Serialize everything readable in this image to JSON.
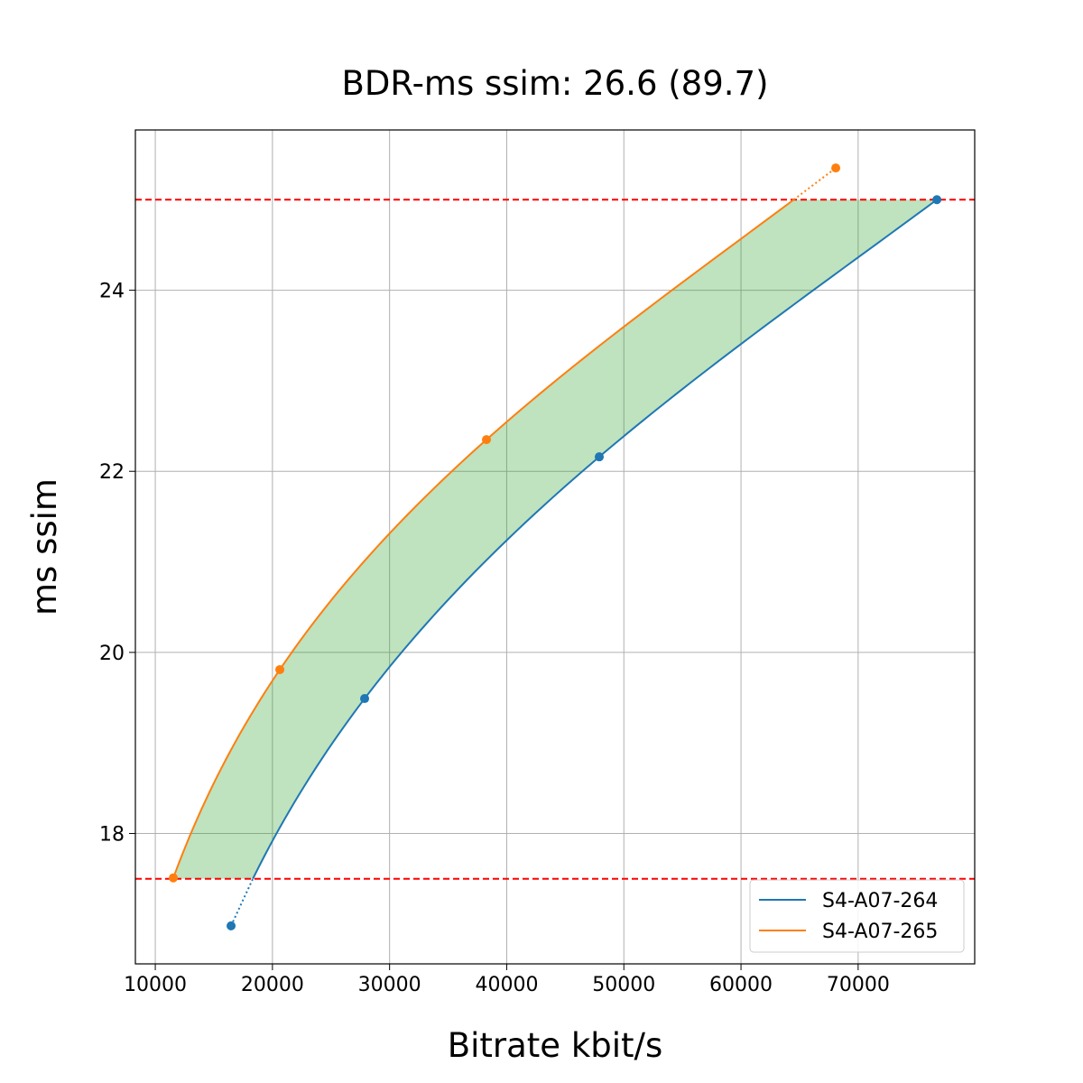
{
  "chart_data": {
    "type": "line",
    "title": "BDR-ms ssim: 26.6 (89.7)",
    "xlabel": "Bitrate kbit/s",
    "ylabel": "ms ssim",
    "xlim": [
      8300,
      79950
    ],
    "ylim": [
      16.56,
      25.77
    ],
    "xticks": [
      10000,
      20000,
      30000,
      40000,
      50000,
      60000,
      70000
    ],
    "yticks": [
      18,
      20,
      22,
      24
    ],
    "grid": true,
    "legend_position": "lower right",
    "reference_lines": [
      17.5,
      25.0
    ],
    "reference_line_color": "#ff0000",
    "fill_color": "#2ca02c",
    "series": [
      {
        "name": "S4-A07-264",
        "color": "#1f77b4",
        "x": [
          16470,
          27870,
          47900,
          76720
        ],
        "y": [
          16.98,
          19.49,
          22.16,
          25.0
        ]
      },
      {
        "name": "S4-A07-265",
        "color": "#ff7f0e",
        "x": [
          11540,
          20630,
          38270,
          68090
        ],
        "y": [
          17.51,
          19.81,
          22.35,
          25.35
        ]
      }
    ]
  }
}
